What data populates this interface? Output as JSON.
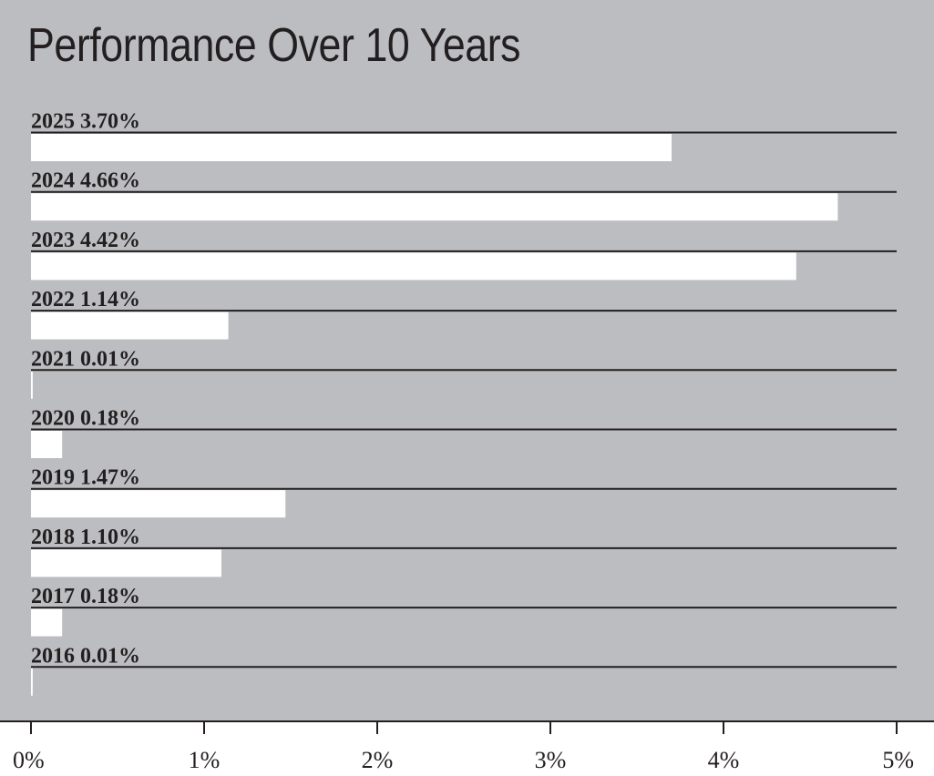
{
  "colors": {
    "panel_background": "#bcbdc0",
    "bar_fill": "#ffffff",
    "rule_line": "#231f20",
    "text": "#231f20",
    "page_background": "#ffffff"
  },
  "chart_data": {
    "type": "bar",
    "orientation": "horizontal",
    "title": "Performance Over 10 Years",
    "xlabel": "",
    "ylabel": "",
    "xlim": [
      0,
      5
    ],
    "x_ticks": [
      0,
      1,
      2,
      3,
      4,
      5
    ],
    "x_tick_labels": [
      "0%",
      "1%",
      "2%",
      "3%",
      "4%",
      "5%"
    ],
    "grid": false,
    "legend": "none",
    "categories": [
      "2025",
      "2024",
      "2023",
      "2022",
      "2021",
      "2020",
      "2019",
      "2018",
      "2017",
      "2016"
    ],
    "values": [
      3.7,
      4.66,
      4.42,
      1.14,
      0.01,
      0.18,
      1.47,
      1.1,
      0.18,
      0.01
    ],
    "labels": [
      "2025 3.70%",
      "2024 4.66%",
      "2023 4.42%",
      "2022 1.14%",
      "2021 0.01%",
      "2020 0.18%",
      "2019 1.47%",
      "2018 1.10%",
      "2017 0.18%",
      "2016 0.01%"
    ]
  }
}
